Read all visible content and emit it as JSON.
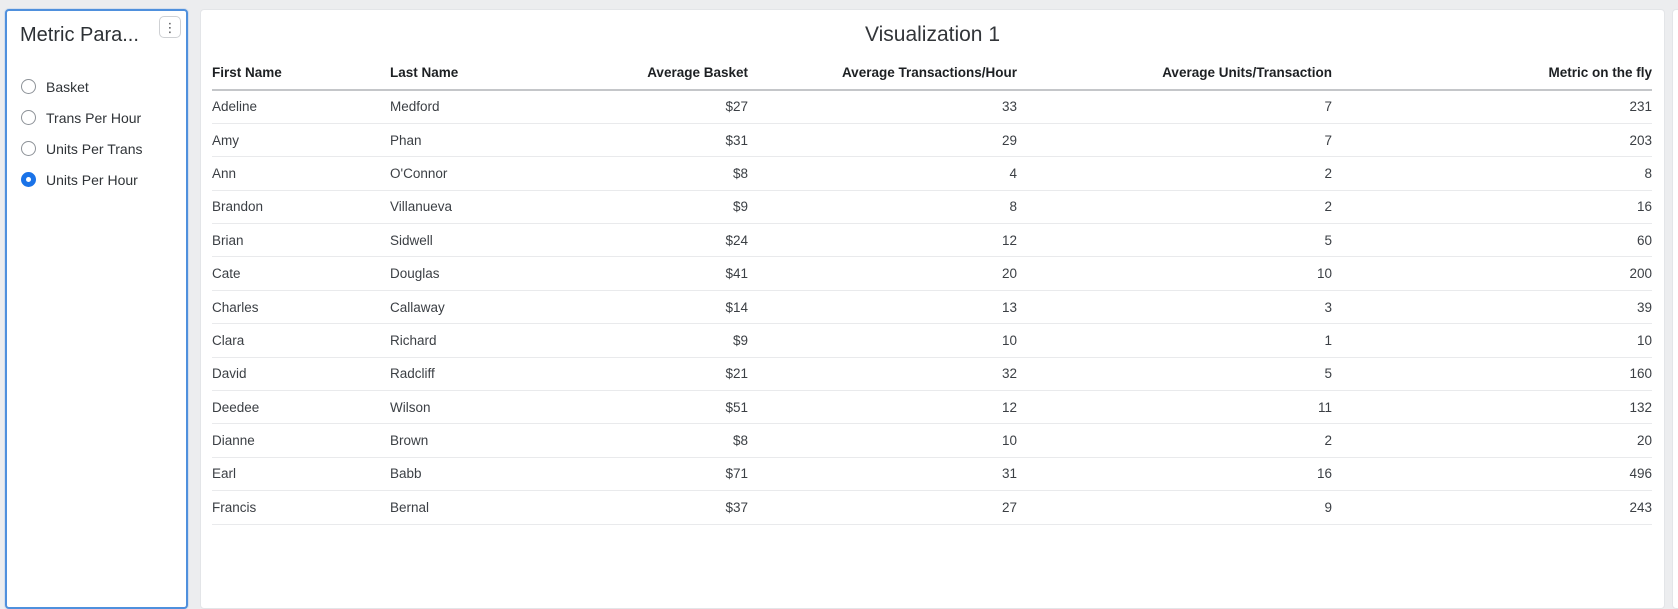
{
  "sidebar": {
    "title": "Metric Para...",
    "menu_icon": "kebab-vertical-icon",
    "options": [
      {
        "label": "Basket",
        "selected": false
      },
      {
        "label": "Trans Per Hour",
        "selected": false
      },
      {
        "label": "Units Per Trans",
        "selected": false
      },
      {
        "label": "Units Per Hour",
        "selected": true
      }
    ]
  },
  "main": {
    "title": "Visualization 1",
    "table": {
      "columns": [
        {
          "label": "First Name",
          "align": "left"
        },
        {
          "label": "Last Name",
          "align": "left"
        },
        {
          "label": "Average Basket",
          "align": "right"
        },
        {
          "label": "Average Transactions/Hour",
          "align": "right"
        },
        {
          "label": "Average Units/Transaction",
          "align": "right"
        },
        {
          "label": "Metric on the fly",
          "align": "right"
        }
      ],
      "rows": [
        [
          "Adeline",
          "Medford",
          "$27",
          "33",
          "7",
          "231"
        ],
        [
          "Amy",
          "Phan",
          "$31",
          "29",
          "7",
          "203"
        ],
        [
          "Ann",
          "O'Connor",
          "$8",
          "4",
          "2",
          "8"
        ],
        [
          "Brandon",
          "Villanueva",
          "$9",
          "8",
          "2",
          "16"
        ],
        [
          "Brian",
          "Sidwell",
          "$24",
          "12",
          "5",
          "60"
        ],
        [
          "Cate",
          "Douglas",
          "$41",
          "20",
          "10",
          "200"
        ],
        [
          "Charles",
          "Callaway",
          "$14",
          "13",
          "3",
          "39"
        ],
        [
          "Clara",
          "Richard",
          "$9",
          "10",
          "1",
          "10"
        ],
        [
          "David",
          "Radcliff",
          "$21",
          "32",
          "5",
          "160"
        ],
        [
          "Deedee",
          "Wilson",
          "$51",
          "12",
          "11",
          "132"
        ],
        [
          "Dianne",
          "Brown",
          "$8",
          "10",
          "2",
          "20"
        ],
        [
          "Earl",
          "Babb",
          "$71",
          "31",
          "16",
          "496"
        ],
        [
          "Francis",
          "Bernal",
          "$37",
          "27",
          "9",
          "243"
        ]
      ]
    }
  },
  "colors": {
    "accent_blue": "#1a73e8",
    "panel_border_blue": "#4f90dd",
    "page_background": "#ecedef",
    "header_rule": "#c4c6c9",
    "row_rule": "#e9eaec"
  }
}
